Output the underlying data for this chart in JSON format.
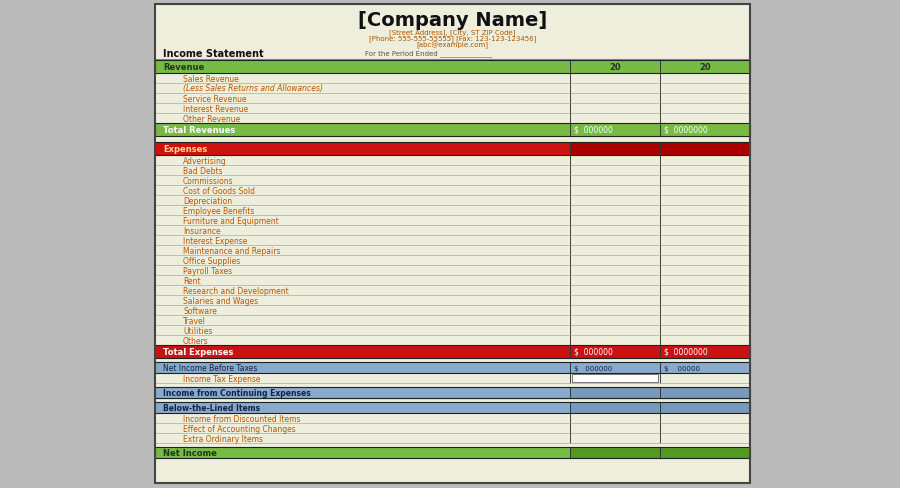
{
  "title": "[Company Name]",
  "address_line1": "[Street Address], [City, ST ZIP Code]",
  "address_line2": "[Phone: 555-555-55555] [Fax: 123-123-123456]",
  "address_line3": "[abc@example.com]",
  "subtitle_left": "Income Statement",
  "subtitle_right": "For the Period Ended _______________",
  "col1_header": "20",
  "col2_header": "20",
  "bg_color": "#EEEEDD",
  "outer_bg_color": "#BBBBBB",
  "outer_border_color": "#444444",
  "green_header_bg": "#77BB44",
  "green_header_text": "#223322",
  "red_header_bg": "#CC1111",
  "blue_header_bg": "#88AACC",
  "blue_header_text": "#112244",
  "green_total_bg": "#77BB44",
  "red_total_bg": "#CC1111",
  "row_line_color": "#AAAAAA",
  "col_line_color": "#222222",
  "item_text_color": "#BB5500",
  "title_color": "#111111",
  "address_color": "#AA5500",
  "subtitle_left_color": "#111111",
  "subtitle_right_color": "#555555",
  "total_revenue_text": "Total Revenues",
  "total_revenue_values": [
    "$  000000",
    "$  0000000"
  ],
  "total_expenses_text": "Total Expenses",
  "total_expenses_values": [
    "$  000000",
    "$  0000000"
  ],
  "net_income_before_text": "Net Income Before Taxes",
  "net_income_before_values": [
    "$   000000",
    "$    00000"
  ],
  "revenue_items": [
    "Sales Revenue",
    "(Less Sales Returns and Allowances)",
    "Service Revenue",
    "Interest Revenue",
    "Other Revenue"
  ],
  "expense_items": [
    "Advertising",
    "Bad Debts",
    "Commissions",
    "Cost of Goods Sold",
    "Depreciation",
    "Employee Benefits",
    "Furniture and Equipment",
    "Insurance",
    "Interest Expense",
    "Maintenance and Repairs",
    "Office Supplies",
    "Payroll Taxes",
    "Rent",
    "Research and Development",
    "Salaries and Wages",
    "Software",
    "Travel",
    "Utilities",
    "Others"
  ],
  "below_items": [
    "Income from Discounted Items",
    "Effect of Accounting Changes",
    "Extra Ordinary Items"
  ],
  "income_tax_text": "Income Tax Expense",
  "continuing_text": "Income from Continuing Expenses",
  "below_lined_text": "Below-the-Lined Items",
  "net_income_text": "Net Income"
}
